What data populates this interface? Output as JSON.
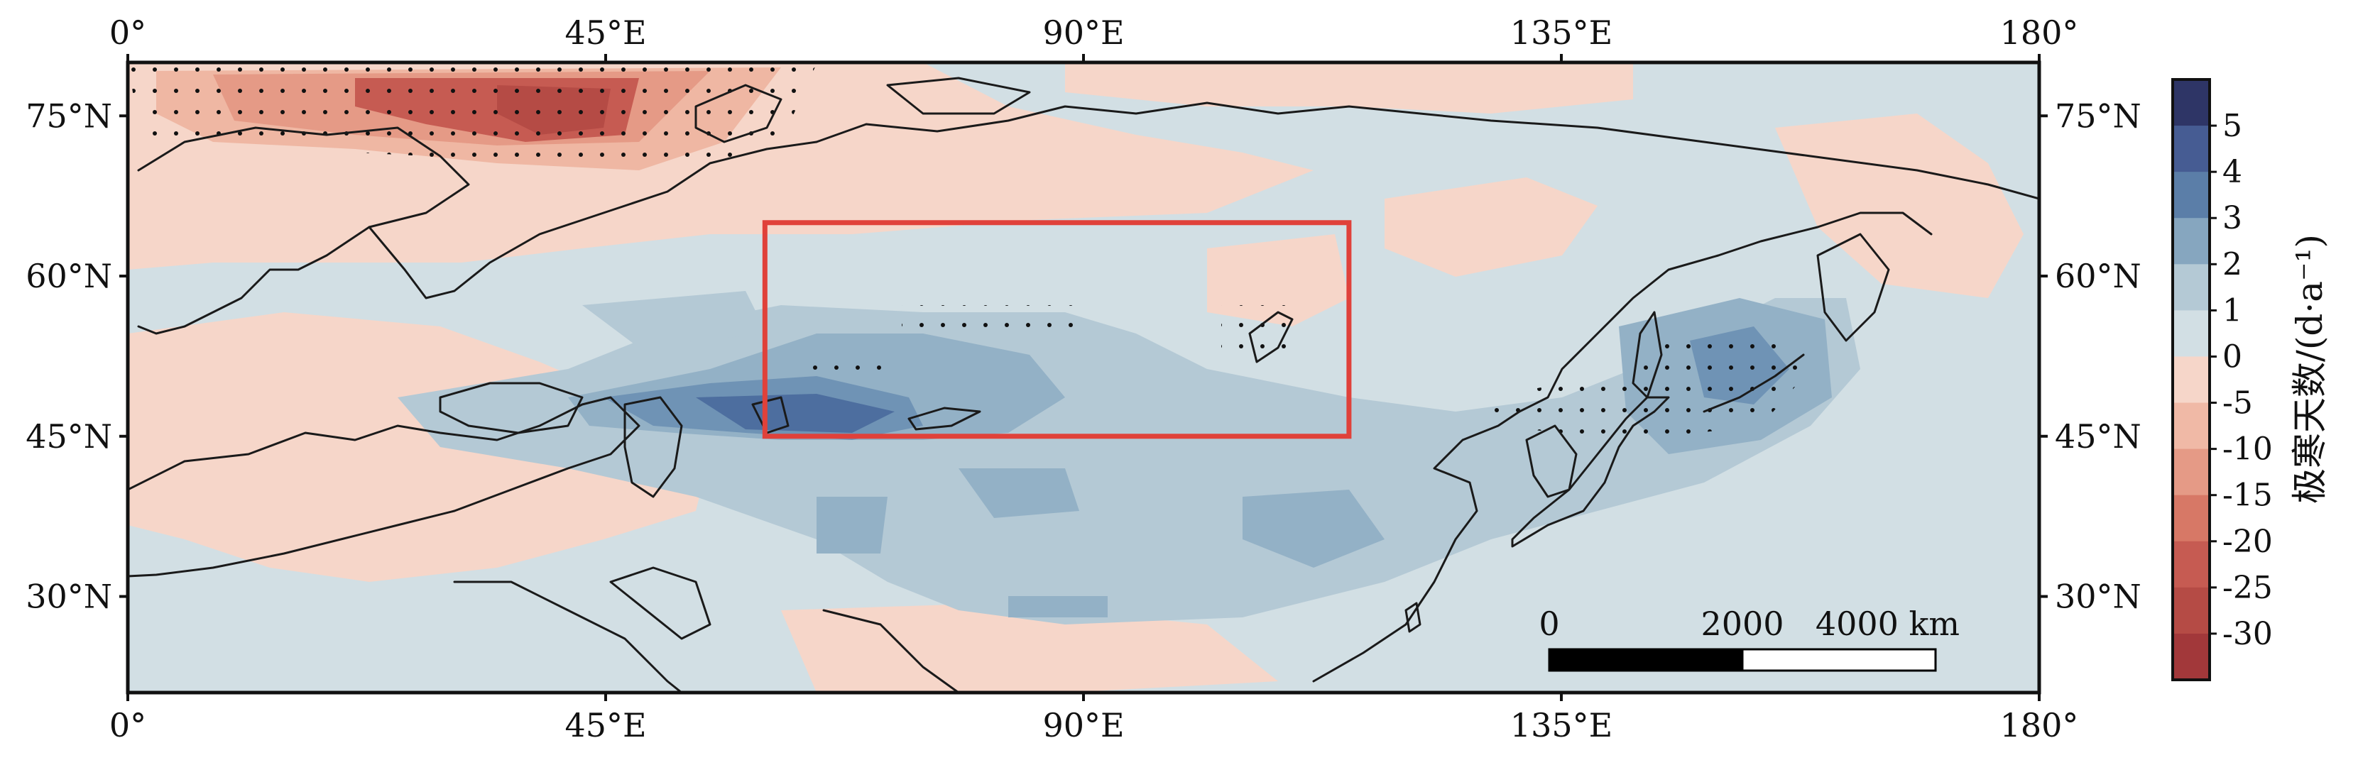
{
  "map": {
    "lon_ticks": [
      "0°",
      "45°E",
      "90°E",
      "135°E",
      "180°"
    ],
    "lat_ticks": [
      "75°N",
      "60°N",
      "45°N",
      "30°N"
    ],
    "lon_range": [
      0,
      180
    ],
    "lat_range": [
      21,
      80
    ],
    "lat_tick_values": [
      75,
      60,
      45,
      30
    ],
    "lon_tick_values": [
      0,
      45,
      90,
      135,
      180
    ],
    "region_box": {
      "lon": [
        60,
        115
      ],
      "lat": [
        45,
        65
      ],
      "color": "#e0413a"
    },
    "stipple_note": "significant areas shown with dots",
    "colors": {
      "background": "#d2dfe4",
      "pink_light": "#f6d6c9",
      "pink_mid": "#efb7a3",
      "red_mid": "#d77866",
      "red_dark": "#b54b45",
      "blue_light": "#b6cbd6",
      "blue_mid": "#93b1c6",
      "blue_dark": "#6f93b5",
      "blue_deep": "#4d6e9f"
    }
  },
  "scalebar": {
    "labels": [
      "0",
      "2000",
      "4000 km"
    ]
  },
  "colorbar": {
    "title": "极寒天数/(d·a⁻¹)",
    "labels": [
      "5",
      "4",
      "3",
      "2",
      "1",
      "0",
      "-5",
      "-10",
      "-15",
      "-20",
      "-25",
      "-30"
    ],
    "colors": [
      "#2e3566",
      "#465c93",
      "#5b7ea8",
      "#86a6bf",
      "#b4c9d5",
      "#d2dfe4",
      "#f6d6c9",
      "#f0b9a6",
      "#e59a86",
      "#d77866",
      "#c65b52",
      "#b54b45",
      "#a2383a"
    ]
  }
}
